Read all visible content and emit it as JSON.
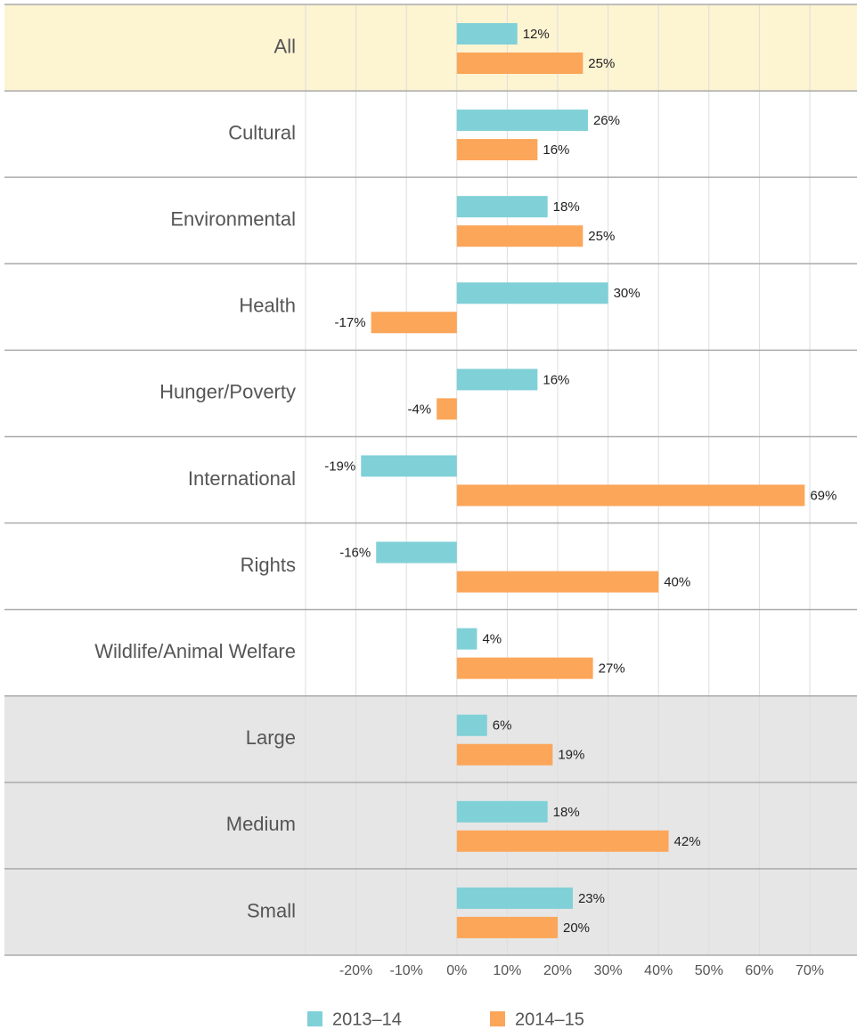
{
  "chart_data": {
    "type": "bar",
    "orientation": "horizontal",
    "categories": [
      "All",
      "Cultural",
      "Environmental",
      "Health",
      "Hunger/Poverty",
      "International",
      "Rights",
      "Wildlife/Animal Welfare",
      "Large",
      "Medium",
      "Small"
    ],
    "category_colors": [
      "#fdf4d2",
      "#ffffff",
      "#ffffff",
      "#ffffff",
      "#ffffff",
      "#ffffff",
      "#ffffff",
      "#ffffff",
      "#e6e6e6",
      "#e6e6e6",
      "#e6e6e6"
    ],
    "series": [
      {
        "name": "2013–14",
        "color": "#80d0d7",
        "values": [
          12,
          26,
          18,
          30,
          16,
          -19,
          -16,
          4,
          6,
          18,
          23
        ],
        "value_labels": [
          "12%",
          "26%",
          "18%",
          "30%",
          "16%",
          "-19%",
          "-16%",
          "4%",
          "6%",
          "18%",
          "23%"
        ]
      },
      {
        "name": "2014–15",
        "color": "#fca65a",
        "values": [
          25,
          16,
          25,
          -17,
          -4,
          69,
          40,
          27,
          19,
          42,
          20
        ],
        "value_labels": [
          "25%",
          "16%",
          "25%",
          "-17%",
          "-4%",
          "69%",
          "40%",
          "27%",
          "19%",
          "42%",
          "20%"
        ]
      }
    ],
    "xlim": [
      -30,
      70
    ],
    "xticks": [
      {
        "value": -20,
        "label": "-20%"
      },
      {
        "value": -10,
        "label": "-10%"
      },
      {
        "value": 0,
        "label": "0%"
      },
      {
        "value": 10,
        "label": "10%"
      },
      {
        "value": 20,
        "label": "20%"
      },
      {
        "value": 30,
        "label": "30%"
      },
      {
        "value": 40,
        "label": "40%"
      },
      {
        "value": 50,
        "label": "50%"
      },
      {
        "value": 60,
        "label": "60%"
      },
      {
        "value": 70,
        "label": "70%"
      }
    ],
    "grid": true,
    "legend": "bottom"
  }
}
